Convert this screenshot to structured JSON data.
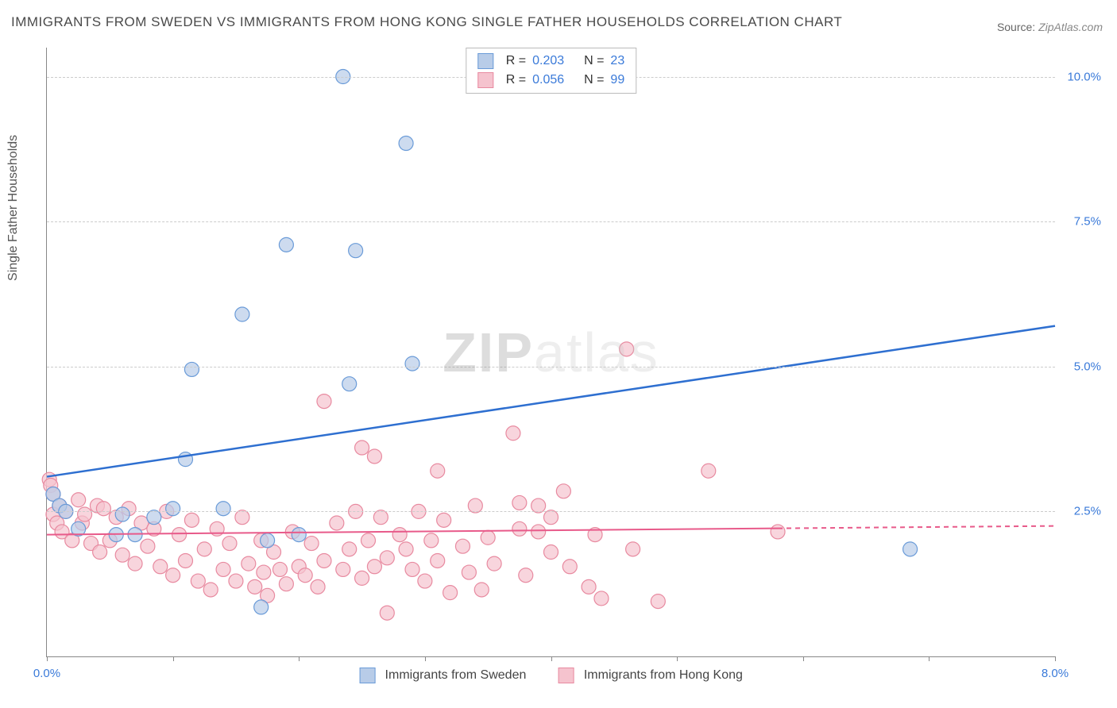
{
  "title": "IMMIGRANTS FROM SWEDEN VS IMMIGRANTS FROM HONG KONG SINGLE FATHER HOUSEHOLDS CORRELATION CHART",
  "source_label": "Source:",
  "source_value": "ZipAtlas.com",
  "y_axis_label": "Single Father Households",
  "watermark_zip": "ZIP",
  "watermark_atlas": "atlas",
  "chart": {
    "type": "scatter",
    "background_color": "#ffffff",
    "grid_color": "#cccccc",
    "x_axis": {
      "min": 0.0,
      "max": 8.0,
      "ticks": [
        0,
        1,
        2,
        3,
        4,
        5,
        6,
        7,
        8
      ],
      "label_left": "0.0%",
      "label_right": "8.0%"
    },
    "y_axis": {
      "min": 0.0,
      "max": 10.5,
      "gridlines": [
        2.5,
        5.0,
        7.5,
        10.0
      ],
      "tick_labels": [
        "2.5%",
        "5.0%",
        "7.5%",
        "10.0%"
      ],
      "label_color": "#3a7ad9"
    },
    "series": [
      {
        "id": "sweden",
        "label": "Immigrants from Sweden",
        "marker_fill": "#b8cce8",
        "marker_stroke": "#6a9bd8",
        "marker_radius": 9,
        "trend_color": "#2e6fd0",
        "trend_width": 2.5,
        "trend_dash_threshold_x": 8.0,
        "trend_start": {
          "x": 0.0,
          "y": 3.1
        },
        "trend_end": {
          "x": 8.0,
          "y": 5.7
        },
        "r_value": "0.203",
        "n_value": "23",
        "points": [
          {
            "x": 0.05,
            "y": 2.8
          },
          {
            "x": 0.1,
            "y": 2.6
          },
          {
            "x": 0.15,
            "y": 2.5
          },
          {
            "x": 0.25,
            "y": 2.2
          },
          {
            "x": 0.55,
            "y": 2.1
          },
          {
            "x": 0.6,
            "y": 2.45
          },
          {
            "x": 0.7,
            "y": 2.1
          },
          {
            "x": 0.85,
            "y": 2.4
          },
          {
            "x": 1.0,
            "y": 2.55
          },
          {
            "x": 1.1,
            "y": 3.4
          },
          {
            "x": 1.15,
            "y": 4.95
          },
          {
            "x": 1.4,
            "y": 2.55
          },
          {
            "x": 1.55,
            "y": 5.9
          },
          {
            "x": 1.7,
            "y": 0.85
          },
          {
            "x": 1.75,
            "y": 2.0
          },
          {
            "x": 1.9,
            "y": 7.1
          },
          {
            "x": 2.0,
            "y": 2.1
          },
          {
            "x": 2.35,
            "y": 10.0
          },
          {
            "x": 2.4,
            "y": 4.7
          },
          {
            "x": 2.45,
            "y": 7.0
          },
          {
            "x": 2.85,
            "y": 8.85
          },
          {
            "x": 2.9,
            "y": 5.05
          },
          {
            "x": 6.85,
            "y": 1.85
          }
        ]
      },
      {
        "id": "hongkong",
        "label": "Immigrants from Hong Kong",
        "marker_fill": "#f5c3ce",
        "marker_stroke": "#e88aa0",
        "marker_radius": 9,
        "trend_color": "#e85a8a",
        "trend_width": 2,
        "trend_dash_threshold_x": 5.8,
        "trend_start": {
          "x": 0.0,
          "y": 2.1
        },
        "trend_end": {
          "x": 8.0,
          "y": 2.25
        },
        "r_value": "0.056",
        "n_value": "99",
        "points": [
          {
            "x": 0.02,
            "y": 3.05
          },
          {
            "x": 0.03,
            "y": 2.95
          },
          {
            "x": 0.05,
            "y": 2.8
          },
          {
            "x": 0.05,
            "y": 2.45
          },
          {
            "x": 0.08,
            "y": 2.3
          },
          {
            "x": 0.1,
            "y": 2.6
          },
          {
            "x": 0.12,
            "y": 2.15
          },
          {
            "x": 0.15,
            "y": 2.5
          },
          {
            "x": 0.2,
            "y": 2.0
          },
          {
            "x": 0.25,
            "y": 2.7
          },
          {
            "x": 0.28,
            "y": 2.3
          },
          {
            "x": 0.3,
            "y": 2.45
          },
          {
            "x": 0.35,
            "y": 1.95
          },
          {
            "x": 0.4,
            "y": 2.6
          },
          {
            "x": 0.42,
            "y": 1.8
          },
          {
            "x": 0.45,
            "y": 2.55
          },
          {
            "x": 0.5,
            "y": 2.0
          },
          {
            "x": 0.55,
            "y": 2.4
          },
          {
            "x": 0.6,
            "y": 1.75
          },
          {
            "x": 0.65,
            "y": 2.55
          },
          {
            "x": 0.7,
            "y": 1.6
          },
          {
            "x": 0.75,
            "y": 2.3
          },
          {
            "x": 0.8,
            "y": 1.9
          },
          {
            "x": 0.85,
            "y": 2.2
          },
          {
            "x": 0.9,
            "y": 1.55
          },
          {
            "x": 0.95,
            "y": 2.5
          },
          {
            "x": 1.0,
            "y": 1.4
          },
          {
            "x": 1.05,
            "y": 2.1
          },
          {
            "x": 1.1,
            "y": 1.65
          },
          {
            "x": 1.15,
            "y": 2.35
          },
          {
            "x": 1.2,
            "y": 1.3
          },
          {
            "x": 1.25,
            "y": 1.85
          },
          {
            "x": 1.3,
            "y": 1.15
          },
          {
            "x": 1.35,
            "y": 2.2
          },
          {
            "x": 1.4,
            "y": 1.5
          },
          {
            "x": 1.45,
            "y": 1.95
          },
          {
            "x": 1.5,
            "y": 1.3
          },
          {
            "x": 1.55,
            "y": 2.4
          },
          {
            "x": 1.6,
            "y": 1.6
          },
          {
            "x": 1.65,
            "y": 1.2
          },
          {
            "x": 1.7,
            "y": 2.0
          },
          {
            "x": 1.72,
            "y": 1.45
          },
          {
            "x": 1.75,
            "y": 1.05
          },
          {
            "x": 1.8,
            "y": 1.8
          },
          {
            "x": 1.85,
            "y": 1.5
          },
          {
            "x": 1.9,
            "y": 1.25
          },
          {
            "x": 1.95,
            "y": 2.15
          },
          {
            "x": 2.0,
            "y": 1.55
          },
          {
            "x": 2.05,
            "y": 1.4
          },
          {
            "x": 2.1,
            "y": 1.95
          },
          {
            "x": 2.15,
            "y": 1.2
          },
          {
            "x": 2.2,
            "y": 4.4
          },
          {
            "x": 2.2,
            "y": 1.65
          },
          {
            "x": 2.3,
            "y": 2.3
          },
          {
            "x": 2.35,
            "y": 1.5
          },
          {
            "x": 2.4,
            "y": 1.85
          },
          {
            "x": 2.45,
            "y": 2.5
          },
          {
            "x": 2.5,
            "y": 1.35
          },
          {
            "x": 2.5,
            "y": 3.6
          },
          {
            "x": 2.55,
            "y": 2.0
          },
          {
            "x": 2.6,
            "y": 1.55
          },
          {
            "x": 2.6,
            "y": 3.45
          },
          {
            "x": 2.65,
            "y": 2.4
          },
          {
            "x": 2.7,
            "y": 1.7
          },
          {
            "x": 2.7,
            "y": 0.75
          },
          {
            "x": 2.8,
            "y": 2.1
          },
          {
            "x": 2.85,
            "y": 1.85
          },
          {
            "x": 2.9,
            "y": 1.5
          },
          {
            "x": 2.95,
            "y": 2.5
          },
          {
            "x": 3.0,
            "y": 1.3
          },
          {
            "x": 3.05,
            "y": 2.0
          },
          {
            "x": 3.1,
            "y": 3.2
          },
          {
            "x": 3.1,
            "y": 1.65
          },
          {
            "x": 3.15,
            "y": 2.35
          },
          {
            "x": 3.2,
            "y": 1.1
          },
          {
            "x": 3.3,
            "y": 1.9
          },
          {
            "x": 3.35,
            "y": 1.45
          },
          {
            "x": 3.4,
            "y": 2.6
          },
          {
            "x": 3.45,
            "y": 1.15
          },
          {
            "x": 3.5,
            "y": 2.05
          },
          {
            "x": 3.55,
            "y": 1.6
          },
          {
            "x": 3.7,
            "y": 3.85
          },
          {
            "x": 3.75,
            "y": 2.65
          },
          {
            "x": 3.75,
            "y": 2.2
          },
          {
            "x": 3.8,
            "y": 1.4
          },
          {
            "x": 3.9,
            "y": 2.15
          },
          {
            "x": 3.9,
            "y": 2.6
          },
          {
            "x": 4.0,
            "y": 1.8
          },
          {
            "x": 4.0,
            "y": 2.4
          },
          {
            "x": 4.1,
            "y": 2.85
          },
          {
            "x": 4.15,
            "y": 1.55
          },
          {
            "x": 4.3,
            "y": 1.2
          },
          {
            "x": 4.35,
            "y": 2.1
          },
          {
            "x": 4.4,
            "y": 1.0
          },
          {
            "x": 4.6,
            "y": 5.3
          },
          {
            "x": 4.65,
            "y": 1.85
          },
          {
            "x": 4.85,
            "y": 0.95
          },
          {
            "x": 5.25,
            "y": 3.2
          },
          {
            "x": 5.8,
            "y": 2.15
          }
        ]
      }
    ],
    "top_legend": {
      "r_label": "R =",
      "n_label": "N ="
    },
    "bottom_legend_labels": [
      "Immigrants from Sweden",
      "Immigrants from Hong Kong"
    ]
  }
}
